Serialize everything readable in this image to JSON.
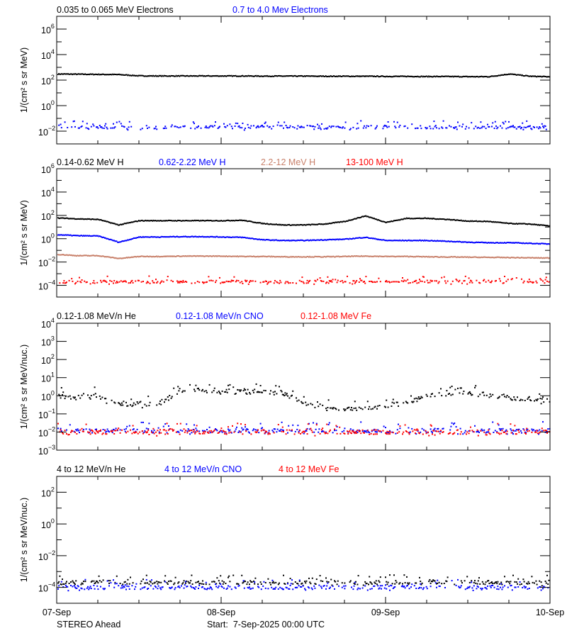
{
  "chart_data": [
    {
      "type": "scatter",
      "yscale": "log",
      "ylabel": "1/(cm² s sr MeV)",
      "ylim_exp": [
        -3,
        7
      ],
      "ytick_label_exps": [
        6,
        4,
        2,
        0,
        -2
      ],
      "hours": [
        0,
        3,
        6,
        9,
        12,
        15,
        18,
        21,
        24,
        27,
        30,
        33,
        36,
        39,
        42,
        45,
        48,
        51,
        54,
        57,
        60,
        63,
        66,
        69,
        72
      ],
      "series": [
        {
          "name": "0.035 to 0.065 MeV Electrons",
          "color": "#000000",
          "style": "line",
          "values": [
            300,
            290,
            280,
            270,
            215,
            210,
            210,
            210,
            210,
            210,
            205,
            205,
            205,
            200,
            200,
            200,
            195,
            195,
            190,
            190,
            185,
            185,
            300,
            200,
            180
          ]
        },
        {
          "name": "0.7 to 4.0 Mev Electrons",
          "color": "#0000ff",
          "style": "scatter",
          "values": [
            0.022,
            0.02,
            0.021,
            0.02,
            0.02,
            0.021,
            0.02,
            0.02,
            0.021,
            0.02,
            0.02,
            0.02,
            0.021,
            0.02,
            0.02,
            0.021,
            0.022,
            0.021,
            0.02,
            0.021,
            0.02,
            0.02,
            0.021,
            0.02,
            0.02
          ]
        }
      ]
    },
    {
      "type": "scatter",
      "yscale": "log",
      "ylabel": "1/(cm² s sr MeV)",
      "ylim_exp": [
        -5,
        6
      ],
      "ytick_label_exps": [
        6,
        4,
        2,
        0,
        -2,
        -4
      ],
      "hours": [
        0,
        3,
        6,
        9,
        12,
        15,
        18,
        21,
        24,
        27,
        30,
        33,
        36,
        39,
        42,
        45,
        48,
        51,
        54,
        57,
        60,
        63,
        66,
        69,
        72
      ],
      "series": [
        {
          "name": "0.14-0.62 MeV H",
          "color": "#000000",
          "style": "line",
          "values": [
            60,
            50,
            45,
            15,
            35,
            35,
            35,
            35,
            35,
            38,
            20,
            15,
            15,
            18,
            30,
            90,
            25,
            55,
            55,
            45,
            32,
            30,
            20,
            18,
            12
          ]
        },
        {
          "name": "0.62-2.22 MeV H",
          "color": "#0000ff",
          "style": "line",
          "values": [
            2.2,
            1.8,
            1.7,
            0.5,
            1.4,
            1.4,
            1.5,
            1.5,
            1.4,
            1.3,
            0.8,
            0.7,
            0.7,
            0.8,
            0.9,
            1.3,
            0.7,
            0.7,
            0.7,
            0.6,
            0.5,
            0.45,
            0.45,
            0.4,
            0.35
          ]
        },
        {
          "name": "2.2-12 MeV H",
          "color": "#c8806a",
          "style": "line",
          "values": [
            0.045,
            0.035,
            0.035,
            0.02,
            0.03,
            0.03,
            0.032,
            0.032,
            0.032,
            0.03,
            0.03,
            0.028,
            0.028,
            0.028,
            0.03,
            0.032,
            0.03,
            0.03,
            0.028,
            0.027,
            0.026,
            0.025,
            0.024,
            0.023,
            0.022
          ]
        },
        {
          "name": "13-100 MeV H",
          "color": "#ff0000",
          "style": "scatter",
          "values": [
            0.0002,
            0.0002,
            0.0002,
            0.0002,
            0.0002,
            0.0002,
            0.0002,
            0.0002,
            0.0002,
            0.0002,
            0.0002,
            0.0002,
            0.0002,
            0.0002,
            0.0002,
            0.0002,
            0.0002,
            0.0002,
            0.0002,
            0.0002,
            0.0002,
            0.0002,
            0.0002,
            0.0002,
            0.0002
          ]
        }
      ]
    },
    {
      "type": "scatter",
      "yscale": "log",
      "ylabel": "1/(cm² s sr MeV/nuc.)",
      "ylim_exp": [
        -3,
        4
      ],
      "ytick_label_exps": [
        4,
        3,
        2,
        1,
        0,
        -1,
        -2,
        -3
      ],
      "hours": [
        0,
        3,
        6,
        9,
        12,
        15,
        18,
        21,
        24,
        27,
        30,
        33,
        36,
        39,
        42,
        45,
        48,
        51,
        54,
        57,
        60,
        63,
        66,
        69,
        72
      ],
      "series": [
        {
          "name": "0.12-1.08 MeV/n He",
          "color": "#000000",
          "style": "scatter",
          "values": [
            1,
            0.9,
            1,
            0.3,
            0.35,
            0.4,
            1.8,
            2,
            1.8,
            1.6,
            1.5,
            1.3,
            0.4,
            0.2,
            0.2,
            0.2,
            0.3,
            0.4,
            1,
            1.5,
            1.4,
            1.2,
            0.8,
            0.6,
            0.5
          ]
        },
        {
          "name": "0.12-1.08 MeV/n CNO",
          "color": "#0000ff",
          "style": "scatter",
          "values": [
            0.012,
            0.012,
            0.012,
            0.012,
            0.012,
            0.012,
            0.012,
            0.012,
            0.012,
            0.012,
            0.012,
            0.012,
            0.012,
            0.012,
            0.012,
            0.012,
            0.012,
            0.012,
            0.012,
            0.012,
            0.012,
            0.012,
            0.012,
            0.012,
            0.012
          ]
        },
        {
          "name": "0.12-1.08 MeV Fe",
          "color": "#ff0000",
          "style": "scatter",
          "values": [
            0.01,
            0.01,
            0.01,
            0.01,
            0.01,
            0.01,
            0.01,
            0.01,
            0.01,
            0.01,
            0.01,
            0.01,
            0.01,
            0.01,
            0.01,
            0.01,
            0.01,
            0.01,
            0.01,
            0.01,
            0.01,
            0.01,
            0.01,
            0.01,
            0.01
          ]
        }
      ]
    },
    {
      "type": "scatter",
      "yscale": "log",
      "ylabel": "1/(cm² s sr MeV/nuc.)",
      "ylim_exp": [
        -5,
        3
      ],
      "ytick_label_exps": [
        2,
        0,
        -2,
        -4
      ],
      "hours": [
        0,
        3,
        6,
        9,
        12,
        15,
        18,
        21,
        24,
        27,
        30,
        33,
        36,
        39,
        42,
        45,
        48,
        51,
        54,
        57,
        60,
        63,
        66,
        69,
        72
      ],
      "series": [
        {
          "name": "4 to 12 MeV/n He",
          "color": "#000000",
          "style": "scatter",
          "values": [
            0.0002,
            0.0002,
            0.0002,
            0.0002,
            0.0002,
            0.0002,
            0.0002,
            0.0002,
            0.0002,
            0.0002,
            0.0002,
            0.0002,
            0.0002,
            0.0002,
            0.0002,
            0.0002,
            0.0002,
            0.0002,
            0.0002,
            0.0002,
            0.0002,
            0.0002,
            0.0002,
            0.0002,
            0.0002
          ]
        },
        {
          "name": "4 to 12 MeV/n CNO",
          "color": "#0000ff",
          "style": "scatter",
          "values": [
            0.0001,
            0.0001,
            0.0001,
            0.0001,
            0.0001,
            0.0001,
            0.0001,
            0.0001,
            0.0001,
            0.0001,
            0.0001,
            0.0001,
            0.0001,
            0.0001,
            0.0001,
            0.0001,
            0.0001,
            0.0001,
            0.0001,
            0.0001,
            0.0001,
            0.0001,
            0.0001,
            0.0001,
            0.0001
          ]
        },
        {
          "name": "4 to 12 MeV Fe",
          "color": "#ff0000",
          "style": "scatter",
          "values": []
        }
      ]
    }
  ],
  "x_axis": {
    "range_hours": [
      0,
      72
    ],
    "tick_labels": [
      "07-Sep",
      "08-Sep",
      "09-Sep",
      "10-Sep"
    ]
  },
  "footer": {
    "spacecraft": "STEREO Ahead",
    "start": "Start:  7-Sep-2025 00:00 UTC"
  }
}
